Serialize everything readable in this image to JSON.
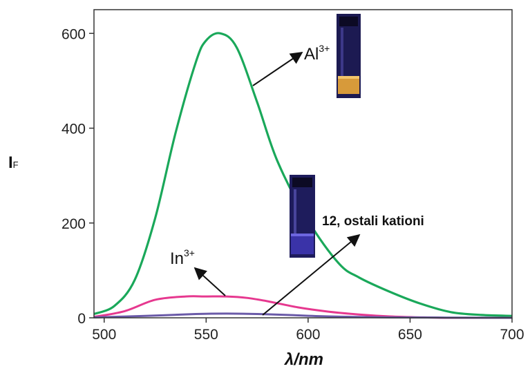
{
  "chart_data": {
    "type": "line",
    "x_label": "λ/nm",
    "y_label": {
      "main": "I",
      "sub": "F"
    },
    "xlim": [
      495,
      700
    ],
    "ylim": [
      0,
      650
    ],
    "x_ticks": [
      500,
      550,
      600,
      650,
      700
    ],
    "y_ticks": [
      0,
      200,
      400,
      600
    ],
    "grid": false,
    "series": [
      {
        "color": "#1aa85a",
        "x": [
          495,
          505,
          515,
          525,
          535,
          545,
          550,
          557,
          565,
          575,
          585,
          600,
          615,
          625,
          640,
          655,
          670,
          685,
          700
        ],
        "y": [
          8,
          25,
          80,
          210,
          390,
          540,
          585,
          600,
          570,
          455,
          330,
          205,
          115,
          85,
          55,
          30,
          12,
          6,
          4
        ]
      },
      {
        "color": "#e6388f",
        "x": [
          495,
          510,
          525,
          540,
          550,
          560,
          570,
          580,
          595,
          610,
          625,
          640,
          655,
          670,
          700
        ],
        "y": [
          2,
          14,
          38,
          45,
          45,
          45,
          42,
          35,
          22,
          13,
          7,
          3,
          1,
          0,
          0
        ]
      },
      {
        "color": "#6a5aa8",
        "x": [
          495,
          520,
          545,
          560,
          575,
          590,
          610,
          640,
          700
        ],
        "y": [
          1,
          4,
          8,
          9,
          8,
          6,
          3,
          1,
          0
        ]
      }
    ],
    "annotations": [
      {
        "label": "Al",
        "superscript": "3+"
      },
      {
        "label": "In",
        "superscript": "3+"
      },
      {
        "label": "12, ostali kationi"
      }
    ],
    "vial_colors": {
      "al_vial": {
        "body": "#1c1a52",
        "liquid": "#d79a3a"
      },
      "other_vial": {
        "body": "#1e1c5c",
        "liquid": "#3a33a8"
      }
    }
  }
}
